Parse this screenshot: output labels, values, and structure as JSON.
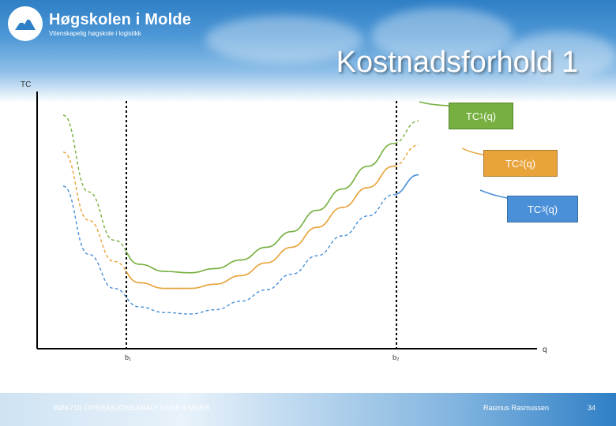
{
  "header": {
    "logo_name": "Høgskolen i Molde",
    "logo_sub": "Vitenskapelig høgskole i logistikk",
    "title": "Kostnadsforhold 1"
  },
  "chart_data": {
    "type": "line",
    "ylabel": "TC",
    "xlabel": "q",
    "ticks": [
      "b₁",
      "b₂"
    ],
    "series": [
      {
        "name": "TC1(q)",
        "label_main": "TC",
        "label_sub": "1",
        "label_tail": "(q)",
        "color": "#77b040",
        "points": [
          [
            0,
            10
          ],
          [
            1,
            64
          ],
          [
            2,
            98
          ],
          [
            3,
            115
          ],
          [
            4,
            120
          ],
          [
            5,
            121
          ],
          [
            6,
            118
          ],
          [
            7,
            112
          ],
          [
            8,
            103
          ],
          [
            9,
            92
          ],
          [
            10,
            77
          ],
          [
            11,
            62
          ],
          [
            12,
            46
          ],
          [
            13,
            30
          ],
          [
            14,
            14
          ]
        ],
        "style": "dashed-solid"
      },
      {
        "name": "TC2(q)",
        "label_main": "TC",
        "label_sub": "2",
        "label_tail": "(q)",
        "color": "#e8a33a",
        "points": [
          [
            0,
            36
          ],
          [
            1,
            84
          ],
          [
            2,
            113
          ],
          [
            3,
            128
          ],
          [
            4,
            132
          ],
          [
            5,
            132
          ],
          [
            6,
            129
          ],
          [
            7,
            123
          ],
          [
            8,
            114
          ],
          [
            9,
            103
          ],
          [
            10,
            89
          ],
          [
            11,
            75
          ],
          [
            12,
            61
          ],
          [
            13,
            46
          ],
          [
            14,
            31
          ]
        ],
        "style": "dashed-solid"
      },
      {
        "name": "TC3(q)",
        "label_main": "TC",
        "label_sub": "3",
        "label_tail": "(q)",
        "color": "#4a90d9",
        "points": [
          [
            0,
            60
          ],
          [
            1,
            108
          ],
          [
            2,
            132
          ],
          [
            3,
            145
          ],
          [
            4,
            149
          ],
          [
            5,
            150
          ],
          [
            6,
            147
          ],
          [
            7,
            141
          ],
          [
            8,
            133
          ],
          [
            9,
            122
          ],
          [
            10,
            109
          ],
          [
            11,
            95
          ],
          [
            12,
            81
          ],
          [
            13,
            66
          ],
          [
            14,
            52
          ]
        ],
        "style": "dashed-solid"
      }
    ],
    "colors": {
      "green": "#77b040",
      "orange": "#e8a33a",
      "blue": "#4a90d9"
    }
  },
  "footer": {
    "course": "BØK710 OPERASJONSANALYTISKE EMNER",
    "author": "Rasmus Rasmussen",
    "page": "34"
  }
}
